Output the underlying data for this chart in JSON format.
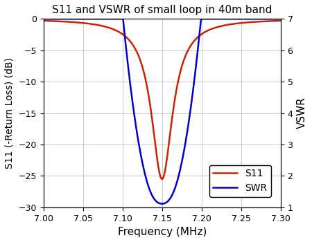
{
  "title": "S11 and VSWR of small loop in 40m band",
  "xlabel": "Frequency (MHz)",
  "ylabel_left": "S11 (-Return Loss) (dB)",
  "ylabel_right": "VSWR",
  "freq_start": 7.0,
  "freq_end": 7.3,
  "freq_points": 5000,
  "resonant_freq": 7.15,
  "s11_min": -25.5,
  "s11_Q": 220,
  "swr_Q": 900,
  "s11_color": "#cc2200",
  "swr_color": "#0000cc",
  "s11_linewidth": 1.8,
  "swr_linewidth": 1.8,
  "ylim_left": [
    -30,
    0
  ],
  "ylim_right": [
    1,
    7
  ],
  "xticks": [
    7.0,
    7.05,
    7.1,
    7.15,
    7.2,
    7.25,
    7.3
  ],
  "yticks_left": [
    0,
    -5,
    -10,
    -15,
    -20,
    -25,
    -30
  ],
  "yticks_right": [
    1,
    2,
    3,
    4,
    5,
    6,
    7
  ],
  "legend_labels": [
    "S11",
    "SWR"
  ],
  "grid": true,
  "figsize": [
    4.5,
    3.5
  ],
  "dpi": 100,
  "bg_color": "#ffffff",
  "font_family": "DejaVu Sans"
}
